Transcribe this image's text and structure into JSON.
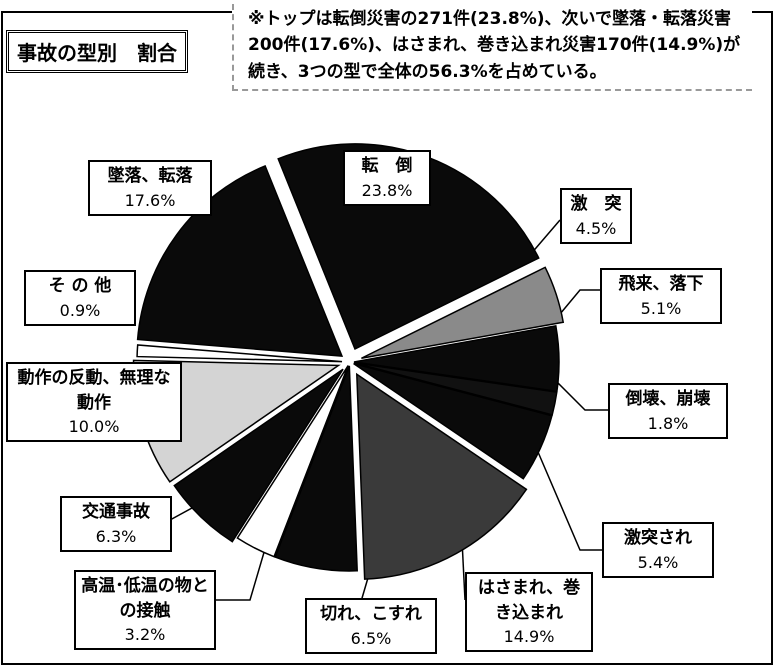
{
  "chart_data": {
    "type": "pie",
    "title": "事故の型別　割合",
    "annotation": "※トップは転倒災害の271件(23.8%)、次いで墜落・転落災害200件(17.6%)、はさまれ、巻き込まれ災害170件(14.9%)が続き、3つの型で全体の56.3%を占めている。",
    "categories": [
      "転　倒",
      "激　突",
      "飛来、落下",
      "倒壊、崩壊",
      "激突され",
      "はさまれ、巻き込まれ",
      "切れ、こすれ",
      "高温･低温の物との接触",
      "交通事故",
      "動作の反動、無理な動作",
      "そ の 他",
      "墜落、転落"
    ],
    "values": [
      23.8,
      4.5,
      5.1,
      1.8,
      5.4,
      14.9,
      6.5,
      3.2,
      6.3,
      10.0,
      0.9,
      17.6
    ],
    "value_labels": [
      "23.8%",
      "4.5%",
      "5.1%",
      "1.8%",
      "5.4%",
      "14.9%",
      "6.5%",
      "3.2%",
      "6.3%",
      "10.0%",
      "0.9%",
      "17.6%"
    ],
    "colors": [
      "#0a0a0a",
      "#8a8a8a",
      "#0a0a0a",
      "#111111",
      "#0a0a0a",
      "#3a3a3a",
      "#0a0a0a",
      "#ffffff",
      "#0a0a0a",
      "#d4d4d4",
      "#ffffff",
      "#0a0a0a"
    ]
  }
}
